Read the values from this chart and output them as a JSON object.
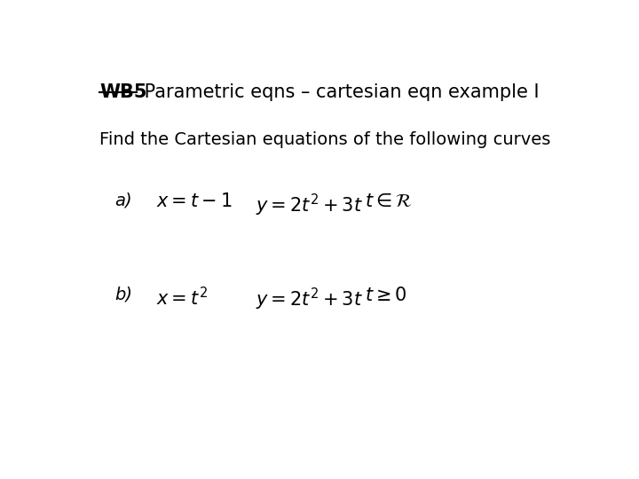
{
  "title_wb": "WB5",
  "title_rest": " Parametric eqns – cartesian eqn example I",
  "subtitle": "Find the Cartesian equations of the following curves",
  "part_a_label": "a)",
  "part_a_eq1": "$x = t - 1$",
  "part_a_eq2": "$y = 2t^2 + 3t$",
  "part_a_eq3": "$t \\in \\mathcal{R}$",
  "part_b_label": "b)",
  "part_b_eq1": "$x = t^2$",
  "part_b_eq2": "$y = 2t^2 + 3t$",
  "part_b_eq3": "$t \\geq 0$",
  "bg_color": "#ffffff",
  "text_color": "#000000",
  "title_fontsize": 15,
  "subtitle_fontsize": 14,
  "math_fontsize": 15,
  "label_fontsize": 14
}
